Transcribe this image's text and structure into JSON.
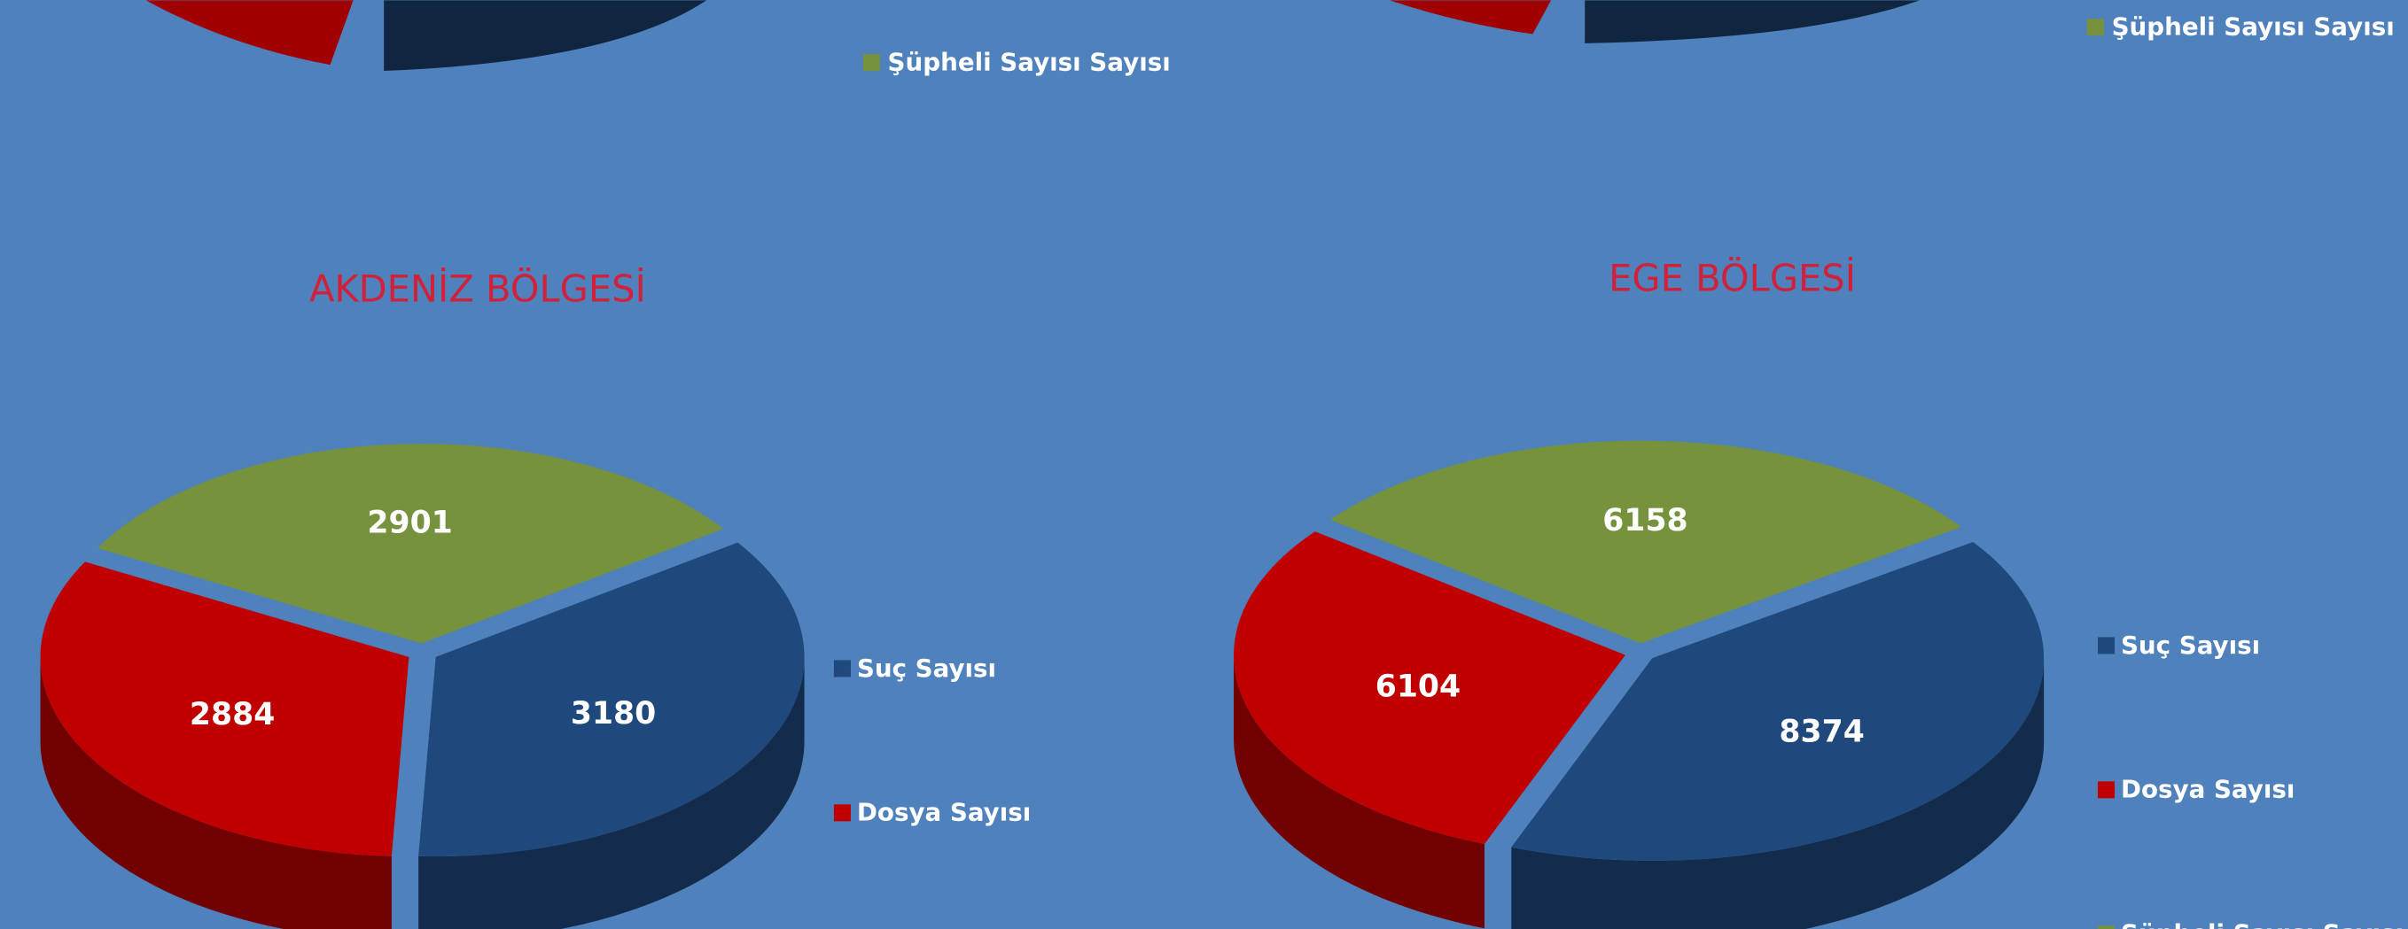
{
  "partial_legends": [
    "Şüpheli Sayısı Sayısı",
    "Şüpheli Sayısı Sayısı"
  ],
  "chart_data": [
    {
      "type": "pie",
      "title": "AKDENİZ BÖLGESİ",
      "categories": [
        "Suç Sayısı",
        "Dosya Sayısı",
        "Şüpheli Sayısı Sayısı"
      ],
      "values": [
        3180,
        2884,
        2901
      ],
      "colors": [
        "#1f497d",
        "#c00000",
        "#76923c"
      ]
    },
    {
      "type": "pie",
      "title": "EGE BÖLGESİ",
      "categories": [
        "Suç Sayısı",
        "Dosya Sayısı",
        "Şüpheli Sayısı Sayısı"
      ],
      "values": [
        8374,
        6104,
        6158
      ],
      "colors": [
        "#1f497d",
        "#c00000",
        "#76923c"
      ]
    }
  ]
}
